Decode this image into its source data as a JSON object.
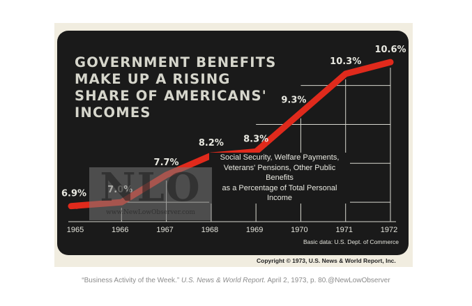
{
  "chart_data": {
    "type": "line",
    "title_lines": [
      "GOVERNMENT BENEFITS",
      "MAKE UP A RISING",
      "SHARE OF AMERICANS'",
      "INCOMES"
    ],
    "categories": [
      "1965",
      "1966",
      "1967",
      "1968",
      "1969",
      "1970",
      "1971",
      "1972"
    ],
    "values": [
      6.9,
      7.0,
      7.7,
      8.2,
      8.3,
      9.3,
      10.3,
      10.6
    ],
    "value_labels": [
      "6.9%",
      "7.0%",
      "7.7%",
      "8.2%",
      "8.3%",
      "9.3%",
      "10.3%",
      "10.6%"
    ],
    "series_color": "#e02a1c",
    "ylim": [
      6.5,
      10.8
    ],
    "grid": true,
    "legend_lines": [
      "Social Security, Welfare Payments,",
      "Veterans' Pensions, Other Public Benefits",
      "as a Percentage of Total Personal Income"
    ],
    "source_note": "Basic data: U.S. Dept. of Commerce",
    "copyright": "Copyright © 1973, U.S. News & World Report, Inc."
  },
  "watermark": {
    "logo_text": "NLO",
    "url_text": "www.NewLowObserver.com"
  },
  "caption": {
    "quote": "“Business Activity of the Week.”",
    "publication": "U.S. News & World Report.",
    "details": "April 2, 1973, p. 80.@NewLowObserver"
  }
}
